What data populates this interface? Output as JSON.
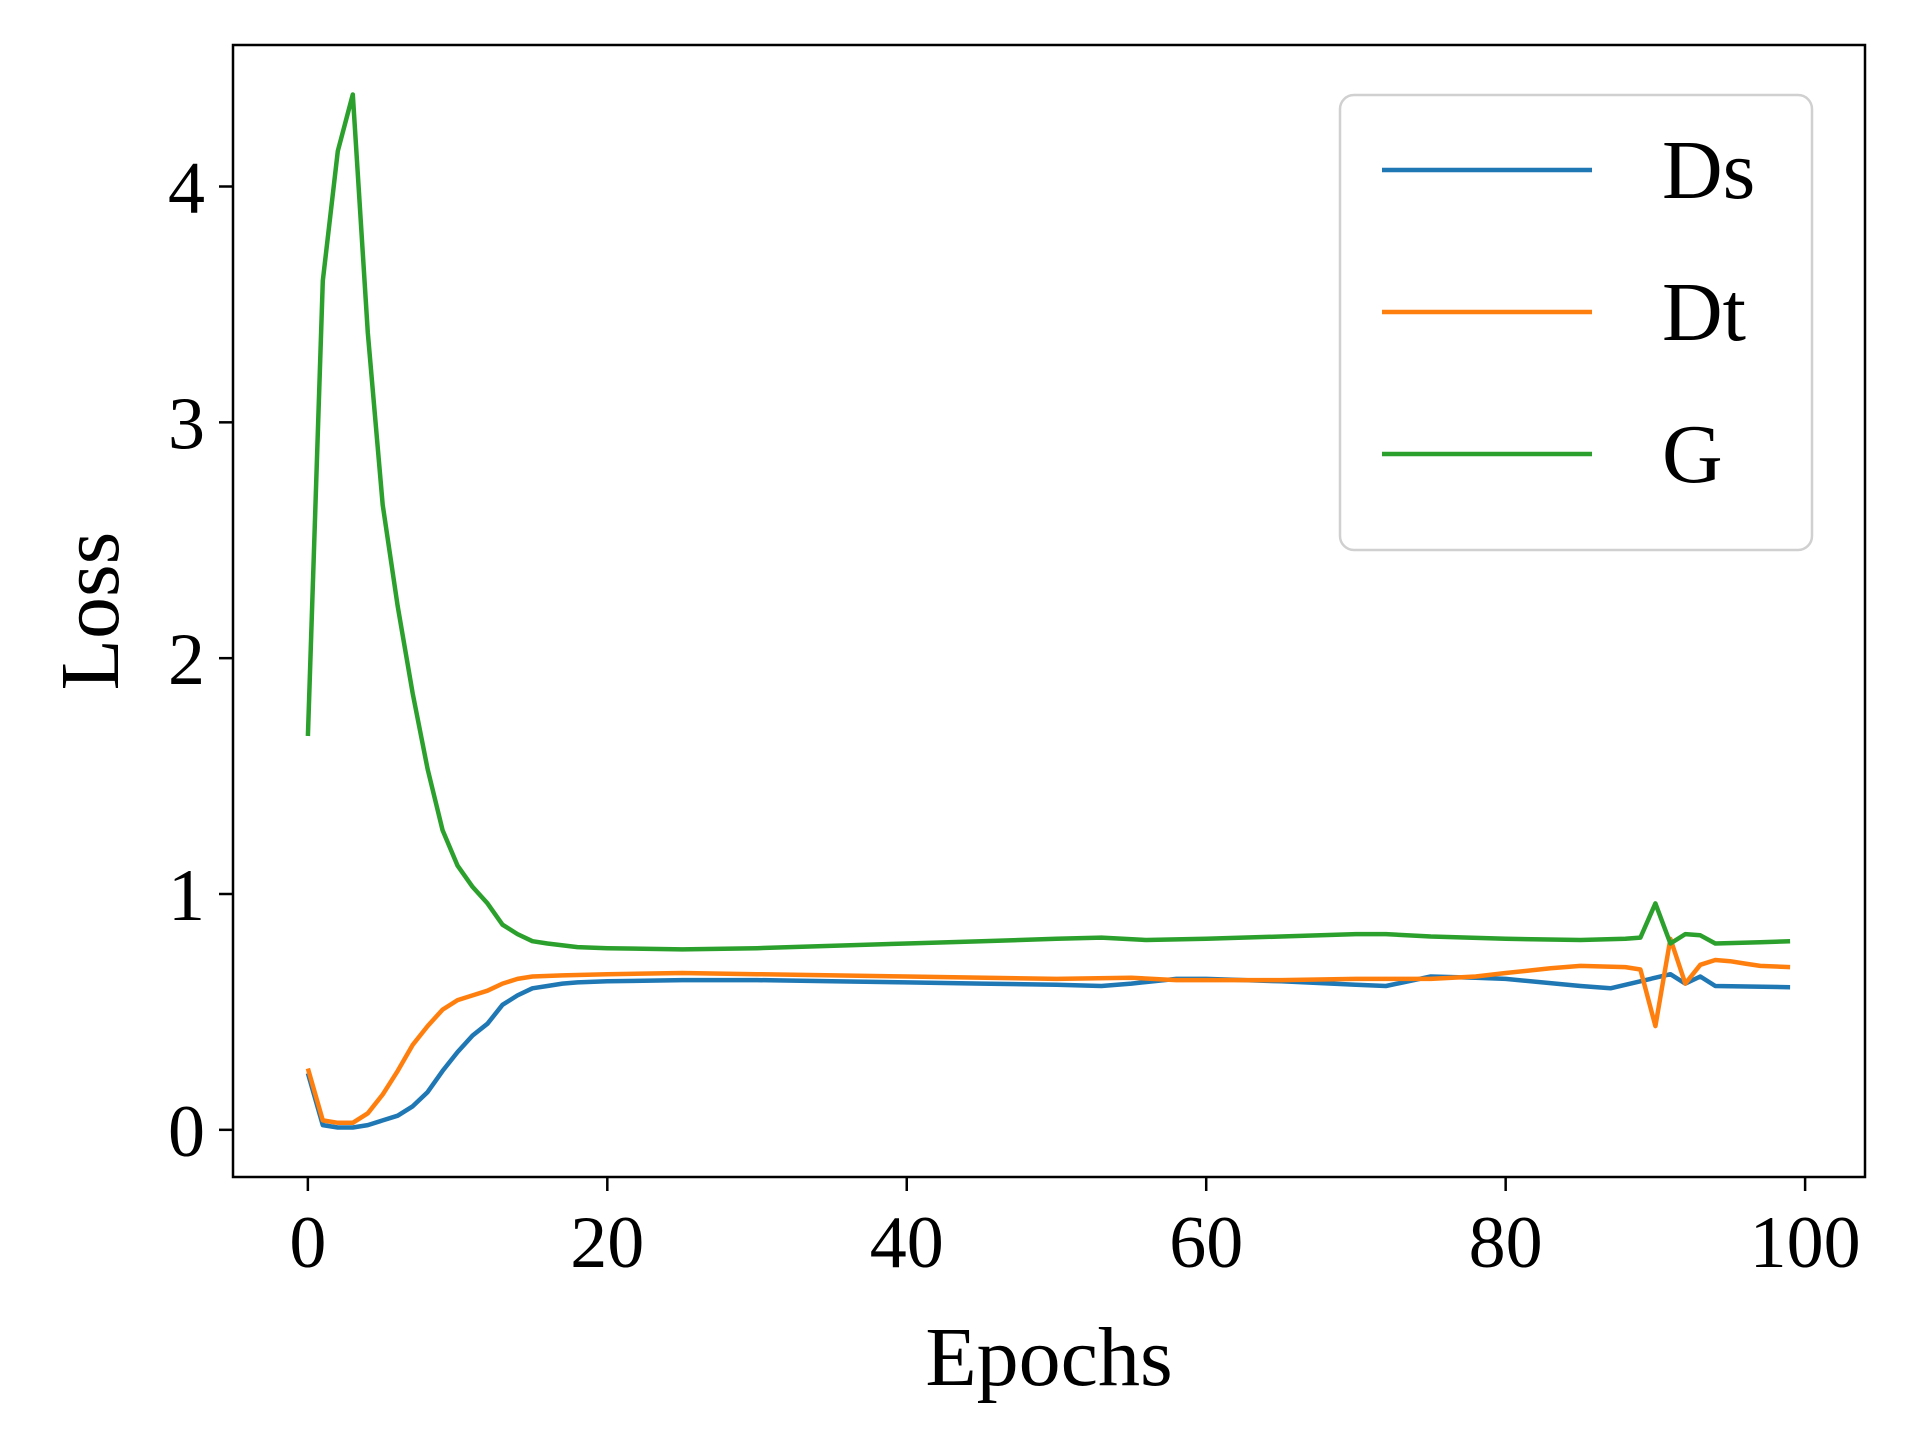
{
  "chart_data": {
    "type": "line",
    "xlabel": "Epochs",
    "ylabel": "Loss",
    "xlim": [
      -5,
      104
    ],
    "ylim": [
      -0.2,
      4.6
    ],
    "xticks": [
      0,
      20,
      40,
      60,
      80,
      100
    ],
    "yticks": [
      0,
      1,
      2,
      3,
      4
    ],
    "xtick_labels": [
      "0",
      "20",
      "40",
      "60",
      "80",
      "100"
    ],
    "ytick_labels": [
      "0",
      "1",
      "2",
      "3",
      "4"
    ],
    "grid": false,
    "legend": {
      "position": "top-right"
    },
    "series": [
      {
        "name": "Ds",
        "color": "#1f77b4",
        "points": [
          [
            0,
            0.24
          ],
          [
            1,
            0.02
          ],
          [
            2,
            0.01
          ],
          [
            3,
            0.01
          ],
          [
            4,
            0.02
          ],
          [
            5,
            0.04
          ],
          [
            6,
            0.06
          ],
          [
            7,
            0.1
          ],
          [
            8,
            0.16
          ],
          [
            9,
            0.25
          ],
          [
            10,
            0.33
          ],
          [
            11,
            0.4
          ],
          [
            12,
            0.45
          ],
          [
            13,
            0.53
          ],
          [
            14,
            0.57
          ],
          [
            15,
            0.6
          ],
          [
            16,
            0.61
          ],
          [
            17,
            0.62
          ],
          [
            18,
            0.625
          ],
          [
            20,
            0.63
          ],
          [
            25,
            0.635
          ],
          [
            30,
            0.635
          ],
          [
            35,
            0.63
          ],
          [
            40,
            0.625
          ],
          [
            45,
            0.62
          ],
          [
            50,
            0.615
          ],
          [
            53,
            0.61
          ],
          [
            55,
            0.62
          ],
          [
            58,
            0.64
          ],
          [
            60,
            0.64
          ],
          [
            65,
            0.63
          ],
          [
            70,
            0.615
          ],
          [
            72,
            0.61
          ],
          [
            75,
            0.65
          ],
          [
            78,
            0.645
          ],
          [
            80,
            0.64
          ],
          [
            85,
            0.61
          ],
          [
            87,
            0.6
          ],
          [
            90,
            0.645
          ],
          [
            91,
            0.66
          ],
          [
            92,
            0.62
          ],
          [
            93,
            0.65
          ],
          [
            94,
            0.61
          ],
          [
            99,
            0.605
          ]
        ]
      },
      {
        "name": "Dt",
        "color": "#ff7f0e",
        "points": [
          [
            0,
            0.26
          ],
          [
            1,
            0.04
          ],
          [
            2,
            0.03
          ],
          [
            3,
            0.03
          ],
          [
            4,
            0.07
          ],
          [
            5,
            0.15
          ],
          [
            6,
            0.25
          ],
          [
            7,
            0.36
          ],
          [
            8,
            0.44
          ],
          [
            9,
            0.51
          ],
          [
            10,
            0.55
          ],
          [
            11,
            0.57
          ],
          [
            12,
            0.59
          ],
          [
            13,
            0.62
          ],
          [
            14,
            0.64
          ],
          [
            15,
            0.65
          ],
          [
            17,
            0.655
          ],
          [
            20,
            0.66
          ],
          [
            25,
            0.665
          ],
          [
            30,
            0.66
          ],
          [
            40,
            0.65
          ],
          [
            50,
            0.64
          ],
          [
            55,
            0.645
          ],
          [
            58,
            0.635
          ],
          [
            65,
            0.635
          ],
          [
            70,
            0.64
          ],
          [
            75,
            0.64
          ],
          [
            78,
            0.65
          ],
          [
            80,
            0.665
          ],
          [
            83,
            0.685
          ],
          [
            85,
            0.695
          ],
          [
            88,
            0.69
          ],
          [
            89,
            0.68
          ],
          [
            90,
            0.44
          ],
          [
            91,
            0.81
          ],
          [
            92,
            0.62
          ],
          [
            93,
            0.7
          ],
          [
            94,
            0.72
          ],
          [
            95,
            0.715
          ],
          [
            96,
            0.705
          ],
          [
            97,
            0.695
          ],
          [
            99,
            0.69
          ]
        ]
      },
      {
        "name": "G",
        "color": "#2ca02c",
        "points": [
          [
            0,
            1.67
          ],
          [
            1,
            3.6
          ],
          [
            2,
            4.15
          ],
          [
            3,
            4.39
          ],
          [
            4,
            3.38
          ],
          [
            5,
            2.65
          ],
          [
            6,
            2.22
          ],
          [
            7,
            1.85
          ],
          [
            8,
            1.53
          ],
          [
            9,
            1.27
          ],
          [
            10,
            1.12
          ],
          [
            11,
            1.03
          ],
          [
            12,
            0.96
          ],
          [
            13,
            0.87
          ],
          [
            14,
            0.83
          ],
          [
            15,
            0.8
          ],
          [
            16,
            0.79
          ],
          [
            18,
            0.775
          ],
          [
            20,
            0.77
          ],
          [
            25,
            0.765
          ],
          [
            30,
            0.77
          ],
          [
            40,
            0.79
          ],
          [
            45,
            0.8
          ],
          [
            50,
            0.81
          ],
          [
            53,
            0.815
          ],
          [
            56,
            0.805
          ],
          [
            60,
            0.81
          ],
          [
            65,
            0.82
          ],
          [
            70,
            0.83
          ],
          [
            72,
            0.83
          ],
          [
            75,
            0.82
          ],
          [
            80,
            0.81
          ],
          [
            85,
            0.805
          ],
          [
            88,
            0.81
          ],
          [
            89,
            0.815
          ],
          [
            90,
            0.96
          ],
          [
            91,
            0.79
          ],
          [
            92,
            0.83
          ],
          [
            93,
            0.825
          ],
          [
            94,
            0.79
          ],
          [
            97,
            0.795
          ],
          [
            99,
            0.8
          ]
        ]
      }
    ]
  }
}
